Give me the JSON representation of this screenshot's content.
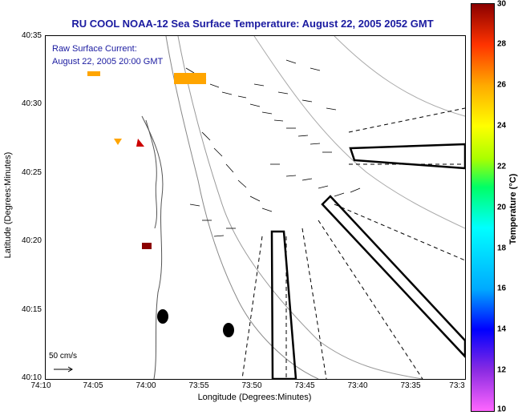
{
  "title": "RU COOL  NOAA-12  Sea Surface Temperature:  August 22, 2005 2052 GMT",
  "overlay": {
    "line1": "Raw Surface Current:",
    "line2": "August 22, 2005 20:00 GMT",
    "scale_label": "50 cm/s"
  },
  "axes": {
    "xlabel": "Longitude (Degrees:Minutes)",
    "ylabel": "Latitude (Degrees:Minutes)",
    "xticks": [
      "74:10",
      "74:05",
      "74:00",
      "73:55",
      "73:50",
      "73:45",
      "73:40",
      "73:35",
      "73:3"
    ],
    "yticks": [
      "40:35",
      "40:30",
      "40:25",
      "40:20",
      "40:15",
      "40:10"
    ]
  },
  "colorbar": {
    "label": "Temperature (°C)",
    "ticks": [
      "30",
      "28",
      "26",
      "24",
      "22",
      "20",
      "18",
      "16",
      "14",
      "12",
      "10"
    ],
    "min": 10,
    "max": 30
  },
  "colors": {
    "title": "#1a1aa0",
    "warm_patch": "#ffa500",
    "hot_patch": "#cc0000"
  }
}
